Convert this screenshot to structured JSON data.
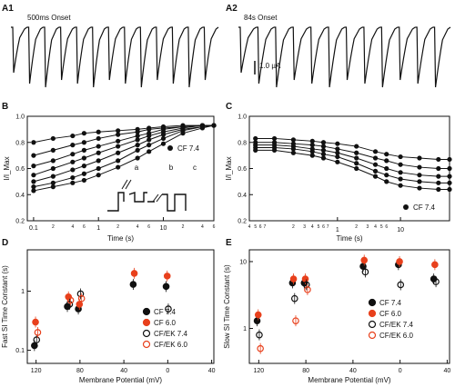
{
  "panels": {
    "A1": {
      "letter": "A1",
      "label": "500ms Onset",
      "n_sweeps": 13
    },
    "A2": {
      "letter": "A2",
      "label": "84s Onset",
      "n_sweeps": 12
    },
    "scale_bar": "1.0 µA",
    "B": {
      "letter": "B"
    },
    "C": {
      "letter": "C"
    },
    "D": {
      "letter": "D"
    },
    "E": {
      "letter": "E"
    }
  },
  "chart_data": [
    {
      "id": "B",
      "type": "line",
      "ylabel": "I/I_Max",
      "xlabel": "Time (s)",
      "xscale": "log",
      "xlim": [
        0.08,
        60
      ],
      "ylim": [
        0.2,
        1.0
      ],
      "yticks": [
        "1.0",
        "0.8",
        "0.6",
        "0.4",
        "0.2"
      ],
      "xticks_major": [
        "0.1",
        "1",
        "10"
      ],
      "xticks_minor": [
        "2",
        "4",
        "6",
        "2",
        "4",
        "6",
        "2",
        "4",
        "6"
      ],
      "legend": "CF 7.4",
      "annotations": [
        "a",
        "b",
        "c"
      ],
      "x": [
        0.1,
        0.2,
        0.4,
        0.6,
        1,
        2,
        4,
        6,
        10,
        20,
        40,
        60
      ],
      "series": [
        {
          "values": [
            0.8,
            0.83,
            0.85,
            0.87,
            0.88,
            0.89,
            0.9,
            0.91,
            0.92,
            0.93,
            0.93,
            0.93
          ]
        },
        {
          "values": [
            0.7,
            0.74,
            0.78,
            0.8,
            0.83,
            0.86,
            0.88,
            0.9,
            0.91,
            0.92,
            0.93,
            0.93
          ]
        },
        {
          "values": [
            0.62,
            0.66,
            0.71,
            0.74,
            0.77,
            0.81,
            0.85,
            0.87,
            0.9,
            0.92,
            0.93,
            0.93
          ]
        },
        {
          "values": [
            0.55,
            0.6,
            0.65,
            0.68,
            0.72,
            0.77,
            0.82,
            0.85,
            0.88,
            0.91,
            0.93,
            0.93
          ]
        },
        {
          "values": [
            0.5,
            0.54,
            0.59,
            0.62,
            0.66,
            0.72,
            0.78,
            0.82,
            0.86,
            0.9,
            0.92,
            0.93
          ]
        },
        {
          "values": [
            0.46,
            0.49,
            0.53,
            0.56,
            0.6,
            0.66,
            0.74,
            0.78,
            0.83,
            0.89,
            0.92,
            0.93
          ]
        },
        {
          "values": [
            0.43,
            0.46,
            0.49,
            0.51,
            0.55,
            0.61,
            0.68,
            0.73,
            0.79,
            0.87,
            0.91,
            0.93
          ]
        }
      ]
    },
    {
      "id": "C",
      "type": "line",
      "ylabel": "I/I_Max",
      "xlabel": "Time (s)",
      "xscale": "log",
      "xlim": [
        0.04,
        60
      ],
      "ylim": [
        0.2,
        1.0
      ],
      "yticks": [
        "1.0",
        "0.8",
        "0.6",
        "0.4",
        "0.2"
      ],
      "xticks_major": [
        "1",
        "10"
      ],
      "xticks_minor": [
        "4",
        "5",
        "6",
        "7",
        "2",
        "3",
        "4",
        "5",
        "6",
        "7",
        "2",
        "3",
        "4",
        "5",
        "6"
      ],
      "legend": "CF 7.4",
      "x": [
        0.05,
        0.1,
        0.2,
        0.4,
        0.6,
        1,
        2,
        4,
        6,
        10,
        20,
        40,
        60
      ],
      "series": [
        {
          "values": [
            0.83,
            0.83,
            0.82,
            0.81,
            0.8,
            0.79,
            0.77,
            0.73,
            0.71,
            0.69,
            0.68,
            0.67,
            0.67
          ]
        },
        {
          "values": [
            0.8,
            0.8,
            0.79,
            0.78,
            0.77,
            0.75,
            0.72,
            0.68,
            0.66,
            0.63,
            0.61,
            0.6,
            0.6
          ]
        },
        {
          "values": [
            0.78,
            0.78,
            0.77,
            0.75,
            0.74,
            0.72,
            0.68,
            0.63,
            0.6,
            0.57,
            0.55,
            0.54,
            0.54
          ]
        },
        {
          "values": [
            0.76,
            0.76,
            0.75,
            0.73,
            0.71,
            0.69,
            0.64,
            0.58,
            0.55,
            0.52,
            0.5,
            0.49,
            0.49
          ]
        },
        {
          "values": [
            0.74,
            0.74,
            0.72,
            0.7,
            0.68,
            0.65,
            0.6,
            0.54,
            0.5,
            0.47,
            0.45,
            0.44,
            0.44
          ]
        }
      ]
    },
    {
      "id": "D",
      "type": "scatter",
      "ylabel": "Fast SI Time Constant (s)",
      "xlabel": "Membrane Potential (mV)",
      "xlim": [
        -128,
        42
      ],
      "ylim": [
        0.06,
        5
      ],
      "yscale": "log",
      "xticks": [
        "120",
        "80",
        "40",
        "0",
        "40"
      ],
      "yticks": [
        "0.1",
        "1"
      ],
      "legend": [
        "CF 7.4",
        "CF 6.0",
        "CF/EK 7.4",
        "CF/EK 6.0"
      ],
      "series": [
        {
          "name": "CF 7.4",
          "style": "black",
          "x": [
            -120,
            -90,
            -80,
            -30,
            0
          ],
          "y": [
            0.12,
            0.55,
            0.5,
            1.3,
            1.2
          ]
        },
        {
          "name": "CF 6.0",
          "style": "red",
          "x": [
            -120,
            -90,
            -80,
            -30,
            0
          ],
          "y": [
            0.3,
            0.8,
            0.6,
            2.0,
            1.8
          ]
        },
        {
          "name": "CF/EK 7.4",
          "style": "open-black",
          "x": [
            -120,
            -90,
            -80,
            0
          ],
          "y": [
            0.15,
            0.6,
            0.9,
            0.5
          ]
        },
        {
          "name": "CF/EK 6.0",
          "style": "open-red",
          "x": [
            -120,
            -90,
            -80
          ],
          "y": [
            0.2,
            0.7,
            0.75
          ]
        }
      ]
    },
    {
      "id": "E",
      "type": "scatter",
      "ylabel": "Slow SI Time Constant (s)",
      "xlabel": "Membrane Potential (mV)",
      "xlim": [
        -128,
        42
      ],
      "ylim": [
        0.3,
        15
      ],
      "yscale": "log",
      "xticks": [
        "120",
        "80",
        "40",
        "0",
        "40"
      ],
      "yticks": [
        "1",
        "10"
      ],
      "legend": [
        "CF 7.4",
        "CF 6.0",
        "CF/EK 7.4",
        "CF/EK 6.0"
      ],
      "series": [
        {
          "name": "CF 7.4",
          "style": "black",
          "x": [
            -120,
            -90,
            -80,
            -30,
            0,
            30
          ],
          "y": [
            1.3,
            4.8,
            4.8,
            8.5,
            9.0,
            5.5
          ]
        },
        {
          "name": "CF 6.0",
          "style": "red",
          "x": [
            -120,
            -90,
            -80,
            -30,
            0,
            30
          ],
          "y": [
            1.6,
            5.5,
            5.5,
            10.5,
            10.0,
            9.0
          ]
        },
        {
          "name": "CF/EK 7.4",
          "style": "open-black",
          "x": [
            -120,
            -90,
            -80,
            -30,
            0,
            30
          ],
          "y": [
            0.8,
            2.8,
            4.5,
            7.0,
            4.5,
            5.0
          ]
        },
        {
          "name": "CF/EK 6.0",
          "style": "open-red",
          "x": [
            -120,
            -90,
            -80
          ],
          "y": [
            0.5,
            1.3,
            3.8
          ]
        }
      ]
    }
  ]
}
